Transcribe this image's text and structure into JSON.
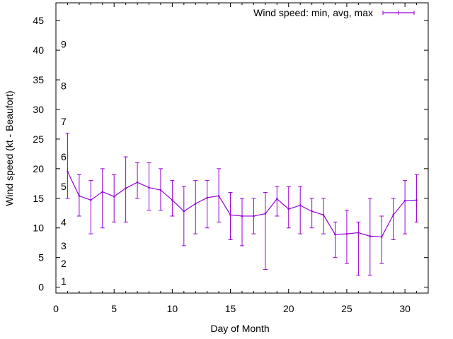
{
  "chart_data": {
    "type": "line",
    "xlabel": "Day of Month",
    "ylabel": "Wind speed (kt - Beaufort)",
    "xlim": [
      0,
      32
    ],
    "ylim": [
      -1,
      48
    ],
    "x_ticks": [
      0,
      5,
      10,
      15,
      20,
      25,
      30
    ],
    "y_ticks": [
      0,
      5,
      10,
      15,
      20,
      25,
      30,
      35,
      40,
      45
    ],
    "beaufort_labels": [
      {
        "label": "1",
        "y": 1
      },
      {
        "label": "2",
        "y": 4
      },
      {
        "label": "3",
        "y": 7
      },
      {
        "label": "4",
        "y": 11
      },
      {
        "label": "5",
        "y": 17
      },
      {
        "label": "6",
        "y": 22
      },
      {
        "label": "7",
        "y": 28
      },
      {
        "label": "8",
        "y": 34
      },
      {
        "label": "9",
        "y": 41
      }
    ],
    "legend_position": "top-right",
    "grid": false,
    "series": [
      {
        "name": "Wind speed: min, avg, max",
        "color": "#9400d3",
        "x": [
          1,
          2,
          3,
          4,
          5,
          6,
          7,
          8,
          9,
          10,
          11,
          12,
          13,
          14,
          15,
          16,
          17,
          18,
          19,
          20,
          21,
          22,
          23,
          24,
          25,
          26,
          27,
          28,
          29,
          30,
          31
        ],
        "avg": [
          19.5,
          15.4,
          14.7,
          16.1,
          15.3,
          16.7,
          17.7,
          16.8,
          16.4,
          14.7,
          12.8,
          14.1,
          15.1,
          15.4,
          12.2,
          12.0,
          12.0,
          12.4,
          14.9,
          13.2,
          13.8,
          12.8,
          12.2,
          8.9,
          9.0,
          9.2,
          8.6,
          8.5,
          12.2,
          14.6,
          14.7
        ],
        "min": [
          15,
          12,
          9,
          10,
          11,
          11,
          15,
          13,
          13,
          12,
          7,
          9,
          10,
          11,
          8,
          7,
          9,
          3,
          12,
          10,
          9,
          10,
          9,
          5,
          4,
          2,
          2,
          4,
          8,
          9,
          11
        ],
        "max": [
          26,
          19,
          18,
          20,
          19,
          22,
          21,
          21,
          20,
          18,
          17,
          18,
          18,
          20,
          16,
          15,
          15,
          16,
          17,
          17,
          17,
          15,
          15,
          11,
          13,
          11,
          15,
          12,
          15,
          18,
          19
        ]
      }
    ]
  }
}
